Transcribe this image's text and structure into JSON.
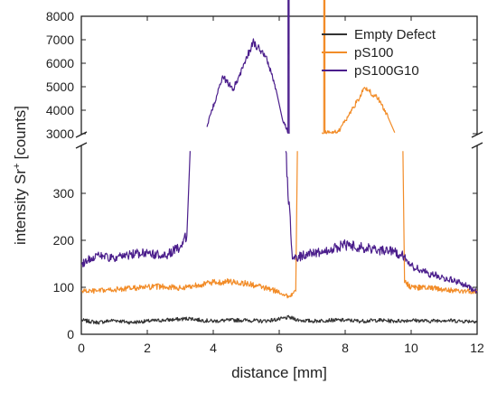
{
  "chart_data": {
    "type": "line",
    "title": "",
    "xlabel": "distance [mm]",
    "ylabel": "intensity Sr",
    "ylabel_superscript": "+",
    "ylabel_unit": "[counts]",
    "xlim": [
      0,
      12
    ],
    "x_ticks": [
      "0",
      "2",
      "4",
      "6",
      "8",
      "10",
      "12"
    ],
    "y_axis_break": true,
    "y_lower_lim": [
      0,
      400
    ],
    "y_lower_ticks": [
      "0",
      "100",
      "200",
      "300"
    ],
    "y_upper_lim": [
      3000,
      8000
    ],
    "y_upper_ticks": [
      "3000",
      "4000",
      "5000",
      "6000",
      "7000",
      "8000"
    ],
    "grid": false,
    "legend_position": "top-right",
    "series": [
      {
        "name": "Empty Defect",
        "color": "#333333",
        "segments": [
          [
            [
              0,
              30
            ],
            [
              0.5,
              25
            ],
            [
              1,
              30
            ],
            [
              1.5,
              25
            ],
            [
              2,
              28
            ],
            [
              2.5,
              30
            ],
            [
              3,
              32
            ],
            [
              3.3,
              34
            ],
            [
              3.6,
              30
            ],
            [
              4,
              28
            ],
            [
              4.5,
              30
            ],
            [
              5,
              30
            ],
            [
              5.5,
              28
            ],
            [
              6,
              32
            ],
            [
              6.3,
              36
            ],
            [
              6.6,
              30
            ],
            [
              7,
              28
            ],
            [
              7.5,
              30
            ],
            [
              8,
              30
            ],
            [
              8.5,
              28
            ],
            [
              9,
              30
            ],
            [
              9.5,
              28
            ],
            [
              10,
              30
            ],
            [
              10.5,
              28
            ],
            [
              11,
              30
            ],
            [
              11.5,
              28
            ],
            [
              12,
              28
            ]
          ]
        ]
      },
      {
        "name": "pS100",
        "color": "#F28C28",
        "segments": [
          [
            [
              0,
              92
            ],
            [
              0.5,
              92
            ],
            [
              1,
              95
            ],
            [
              1.5,
              98
            ],
            [
              2,
              100
            ],
            [
              2.5,
              102
            ],
            [
              3,
              98
            ],
            [
              3.5,
              105
            ],
            [
              4,
              110
            ],
            [
              4.5,
              112
            ],
            [
              5,
              108
            ],
            [
              5.5,
              100
            ],
            [
              6,
              90
            ],
            [
              6.3,
              80
            ],
            [
              6.5,
              92
            ],
            [
              6.55,
              390
            ]
          ],
          [
            [
              7.3,
              3050
            ],
            [
              7.8,
              3100
            ],
            [
              8.2,
              4000
            ],
            [
              8.6,
              4950
            ],
            [
              9,
              4500
            ],
            [
              9.3,
              3700
            ],
            [
              9.5,
              3050
            ]
          ],
          [
            [
              9.75,
              390
            ],
            [
              9.8,
              110
            ],
            [
              10,
              100
            ],
            [
              10.5,
              100
            ],
            [
              11,
              95
            ],
            [
              11.5,
              92
            ],
            [
              12,
              90
            ]
          ]
        ]
      },
      {
        "name": "pS100G10",
        "color": "#4B1E8C",
        "segments": [
          [
            [
              0,
              150
            ],
            [
              0.5,
              170
            ],
            [
              1,
              160
            ],
            [
              1.5,
              170
            ],
            [
              2,
              175
            ],
            [
              2.5,
              165
            ],
            [
              3,
              185
            ],
            [
              3.2,
              210
            ],
            [
              3.3,
              390
            ]
          ],
          [
            [
              3.8,
              3300
            ],
            [
              4.1,
              4600
            ],
            [
              4.3,
              5400
            ],
            [
              4.6,
              4900
            ],
            [
              4.9,
              5800
            ],
            [
              5.2,
              6900
            ],
            [
              5.6,
              6300
            ],
            [
              5.9,
              4900
            ],
            [
              6.1,
              3600
            ],
            [
              6.3,
              3000
            ]
          ],
          [
            [
              6.2,
              390
            ],
            [
              6.4,
              160
            ],
            [
              6.8,
              170
            ],
            [
              7.5,
              180
            ],
            [
              8,
              190
            ],
            [
              8.5,
              185
            ],
            [
              9,
              180
            ],
            [
              9.5,
              175
            ],
            [
              9.8,
              165
            ],
            [
              10,
              145
            ],
            [
              10.5,
              130
            ],
            [
              11,
              120
            ],
            [
              11.5,
              110
            ],
            [
              12,
              90
            ]
          ]
        ]
      }
    ]
  }
}
